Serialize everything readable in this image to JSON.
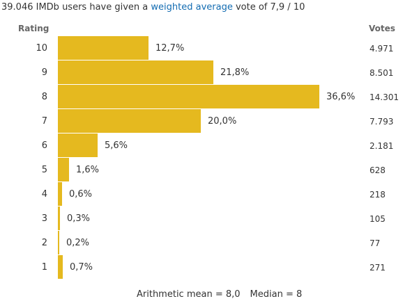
{
  "summary": {
    "prefix": "39.046 IMDb users have given a ",
    "link": "weighted average",
    "suffix": " vote of 7,9 / 10"
  },
  "headers": {
    "rating": "Rating",
    "votes": "Votes"
  },
  "footer": {
    "mean": "Arithmetic mean = 8,0",
    "median": "Median = 8"
  },
  "colors": {
    "bar": "#e5b91f",
    "link": "#136cb2"
  },
  "chart_data": {
    "type": "bar",
    "orientation": "horizontal",
    "categories": [
      "10",
      "9",
      "8",
      "7",
      "6",
      "5",
      "4",
      "3",
      "2",
      "1"
    ],
    "values": [
      12.7,
      21.8,
      36.6,
      20.0,
      5.6,
      1.6,
      0.6,
      0.3,
      0.2,
      0.7
    ],
    "percent_labels": [
      "12,7%",
      "21,8%",
      "36,6%",
      "20,0%",
      "5,6%",
      "1,6%",
      "0,6%",
      "0,3%",
      "0,2%",
      "0,7%"
    ],
    "votes": [
      "4.971",
      "8.501",
      "14.301",
      "7.793",
      "2.181",
      "628",
      "218",
      "105",
      "77",
      "271"
    ],
    "xlim": [
      0,
      36.6
    ],
    "grid": false
  }
}
